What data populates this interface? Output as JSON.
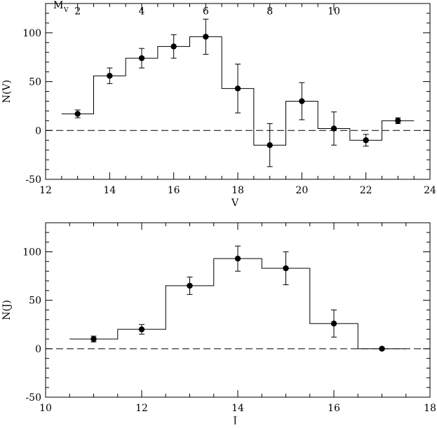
{
  "chart_data": [
    {
      "type": "step",
      "xlabel": "V",
      "ylabel": "N(V)",
      "xlim": [
        12,
        24
      ],
      "ylim": [
        -50,
        130
      ],
      "xticks": [
        12,
        14,
        16,
        18,
        20,
        22,
        24
      ],
      "yticks": [
        -50,
        0,
        50,
        100
      ],
      "top_axis": {
        "label": "M",
        "label_sub": "V",
        "ticks": [
          2,
          4,
          6,
          8,
          10
        ],
        "offset": 11.0
      },
      "zero_line": "dashed",
      "histogram": {
        "bin_width": 1,
        "centers": [
          13,
          14,
          15,
          16,
          17,
          18,
          19,
          20,
          21,
          22,
          23
        ],
        "values": [
          17,
          56,
          74,
          86,
          96,
          43,
          -15,
          30,
          2,
          -10,
          10
        ]
      },
      "points": {
        "x": [
          13,
          14,
          15,
          16,
          17,
          18,
          19,
          20,
          21,
          22,
          23
        ],
        "y": [
          17,
          56,
          74,
          86,
          96,
          43,
          -15,
          30,
          2,
          -10,
          10
        ],
        "err_low": [
          4,
          8,
          10,
          12,
          18,
          25,
          22,
          19,
          17,
          6,
          3
        ],
        "err_high": [
          4,
          8,
          10,
          12,
          18,
          25,
          22,
          19,
          17,
          6,
          3
        ]
      }
    },
    {
      "type": "step",
      "xlabel": "J",
      "ylabel": "N(J)",
      "xlim": [
        10,
        18
      ],
      "ylim": [
        -50,
        130
      ],
      "xticks": [
        10,
        12,
        14,
        16,
        18
      ],
      "yticks": [
        -50,
        0,
        50,
        100
      ],
      "zero_line": "dashed",
      "histogram": {
        "bin_width": 1,
        "centers": [
          11,
          12,
          13,
          14,
          15,
          16,
          17
        ],
        "values": [
          10,
          20,
          65,
          93,
          83,
          26,
          0
        ]
      },
      "points": {
        "x": [
          11,
          12,
          13,
          14,
          15,
          16,
          17
        ],
        "y": [
          10,
          20,
          65,
          93,
          83,
          26,
          0
        ],
        "err_low": [
          3,
          5,
          9,
          13,
          17,
          14,
          1
        ],
        "err_high": [
          3,
          5,
          9,
          13,
          17,
          14,
          1
        ]
      }
    }
  ]
}
